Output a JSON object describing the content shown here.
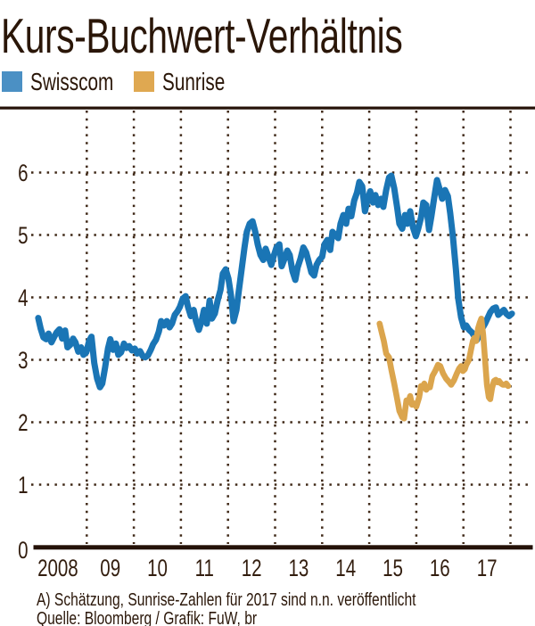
{
  "title": "Kurs-Buchwert-Verhältnis",
  "legend": [
    {
      "label": "Swisscom",
      "color": "#4b90c4"
    },
    {
      "label": "Sunrise",
      "color": "#dfa851"
    }
  ],
  "footnote": "A) Schätzung, Sunrise-Zahlen für 2017 sind n.n. veröffentlicht",
  "source": "Quelle: Bloomberg / Grafik: FuW, br",
  "colors": {
    "background": "#ffffff",
    "ink": "#2a1608",
    "grid": "#3f2817",
    "axis": "#241107",
    "swisscom": "#1a75b5",
    "sunrise": "#dba54d"
  },
  "chart_data": {
    "type": "line",
    "title": "Kurs-Buchwert-Verhältnis",
    "xlabel": "",
    "ylabel": "",
    "xlim": [
      2007.95,
      2018.15
    ],
    "ylim": [
      0,
      7
    ],
    "y_ticks": [
      0,
      1,
      2,
      3,
      4,
      5,
      6
    ],
    "x_tick_labels": [
      "2008",
      "09",
      "10",
      "11",
      "12",
      "13",
      "14",
      "15",
      "16",
      "17"
    ],
    "grid": "dotted",
    "legend_position": "top-left",
    "series": [
      {
        "name": "Swisscom",
        "color": "#1a75b5",
        "x": [
          2007.97,
          2008.02,
          2008.08,
          2008.14,
          2008.19,
          2008.25,
          2008.31,
          2008.36,
          2008.42,
          2008.48,
          2008.54,
          2008.59,
          2008.65,
          2008.71,
          2008.76,
          2008.82,
          2008.88,
          2008.93,
          2008.99,
          2009.05,
          2009.1,
          2009.16,
          2009.22,
          2009.28,
          2009.33,
          2009.39,
          2009.45,
          2009.5,
          2009.56,
          2009.62,
          2009.67,
          2009.73,
          2009.79,
          2009.84,
          2009.9,
          2009.96,
          2010.02,
          2010.07,
          2010.13,
          2010.19,
          2010.24,
          2010.3,
          2010.36,
          2010.41,
          2010.47,
          2010.53,
          2010.58,
          2010.64,
          2010.7,
          2010.76,
          2010.81,
          2010.87,
          2010.93,
          2010.98,
          2011.04,
          2011.1,
          2011.15,
          2011.21,
          2011.27,
          2011.32,
          2011.38,
          2011.44,
          2011.49,
          2011.55,
          2011.61,
          2011.66,
          2011.72,
          2011.78,
          2011.84,
          2011.89,
          2011.95,
          2012.01,
          2012.06,
          2012.12,
          2012.18,
          2012.23,
          2012.29,
          2012.35,
          2012.4,
          2012.46,
          2012.52,
          2012.58,
          2012.63,
          2012.69,
          2012.75,
          2012.8,
          2012.86,
          2012.92,
          2012.97,
          2013.03,
          2013.09,
          2013.14,
          2013.2,
          2013.26,
          2013.31,
          2013.37,
          2013.43,
          2013.48,
          2013.54,
          2013.6,
          2013.66,
          2013.71,
          2013.77,
          2013.83,
          2013.88,
          2013.94,
          2014.0,
          2014.05,
          2014.11,
          2014.17,
          2014.22,
          2014.28,
          2014.34,
          2014.39,
          2014.45,
          2014.51,
          2014.56,
          2014.62,
          2014.68,
          2014.74,
          2014.79,
          2014.85,
          2014.91,
          2014.96,
          2015.02,
          2015.08,
          2015.13,
          2015.19,
          2015.25,
          2015.3,
          2015.36,
          2015.42,
          2015.47,
          2015.53,
          2015.59,
          2015.64,
          2015.7,
          2015.76,
          2015.81,
          2015.87,
          2015.93,
          2015.99,
          2016.04,
          2016.1,
          2016.15,
          2016.21,
          2016.27,
          2016.32,
          2016.38,
          2016.44,
          2016.5,
          2016.55,
          2016.61,
          2016.67,
          2016.72,
          2016.78,
          2016.84,
          2016.89,
          2016.95,
          2017.01,
          2017.06,
          2017.12,
          2017.18,
          2017.23,
          2017.29,
          2017.35,
          2017.4,
          2017.46,
          2017.52,
          2017.57,
          2017.63,
          2017.69,
          2017.74,
          2017.8,
          2017.86,
          2017.91,
          2017.97,
          2018.03
        ],
        "values": [
          3.67,
          3.5,
          3.36,
          3.33,
          3.42,
          3.28,
          3.37,
          3.44,
          3.49,
          3.34,
          3.47,
          3.2,
          3.24,
          3.34,
          3.28,
          3.13,
          3.2,
          3.08,
          3.12,
          3.3,
          3.37,
          2.95,
          2.7,
          2.56,
          2.62,
          2.88,
          3.18,
          3.33,
          3.16,
          3.26,
          3.08,
          3.12,
          3.26,
          3.19,
          3.22,
          3.15,
          3.18,
          3.1,
          3.14,
          3.06,
          3.04,
          3.07,
          3.16,
          3.25,
          3.32,
          3.45,
          3.62,
          3.55,
          3.62,
          3.52,
          3.58,
          3.72,
          3.78,
          3.85,
          3.98,
          4.02,
          3.85,
          3.7,
          3.8,
          3.62,
          3.48,
          3.62,
          3.8,
          3.58,
          3.95,
          3.66,
          3.74,
          3.95,
          4.12,
          4.38,
          4.45,
          4.3,
          4.05,
          3.62,
          3.8,
          4.1,
          4.45,
          4.8,
          5.05,
          5.18,
          5.22,
          5.05,
          4.85,
          4.68,
          4.6,
          4.78,
          4.65,
          4.52,
          4.66,
          4.8,
          4.85,
          4.5,
          4.62,
          4.75,
          4.68,
          4.42,
          4.28,
          4.48,
          4.62,
          4.8,
          4.72,
          4.58,
          4.4,
          4.35,
          4.52,
          4.6,
          4.65,
          4.85,
          4.92,
          4.76,
          5.05,
          5.0,
          4.95,
          5.18,
          5.32,
          5.18,
          5.42,
          5.3,
          5.55,
          5.68,
          5.85,
          5.78,
          5.38,
          5.55,
          5.7,
          5.52,
          5.64,
          5.48,
          5.58,
          5.45,
          5.72,
          5.92,
          5.95,
          5.75,
          5.45,
          5.18,
          5.1,
          5.32,
          5.18,
          5.38,
          5.12,
          4.98,
          5.1,
          5.28,
          5.52,
          5.48,
          5.08,
          5.3,
          5.6,
          5.88,
          5.72,
          5.58,
          5.72,
          5.62,
          5.35,
          4.95,
          4.45,
          3.98,
          3.68,
          3.52,
          3.55,
          3.48,
          3.44,
          3.38,
          3.32,
          3.42,
          3.5,
          3.58,
          3.68,
          3.76,
          3.82,
          3.84,
          3.72,
          3.76,
          3.8,
          3.74,
          3.7,
          3.74
        ]
      },
      {
        "name": "Sunrise",
        "color": "#dba54d",
        "x": [
          2015.22,
          2015.27,
          2015.31,
          2015.36,
          2015.42,
          2015.47,
          2015.53,
          2015.59,
          2015.64,
          2015.7,
          2015.74,
          2015.79,
          2015.83,
          2015.87,
          2015.91,
          2015.96,
          2016.0,
          2016.06,
          2016.1,
          2016.13,
          2016.17,
          2016.21,
          2016.25,
          2016.29,
          2016.34,
          2016.4,
          2016.46,
          2016.51,
          2016.57,
          2016.63,
          2016.69,
          2016.74,
          2016.8,
          2016.86,
          2016.91,
          2016.95,
          2016.99,
          2017.03,
          2017.06,
          2017.12,
          2017.16,
          2017.2,
          2017.23,
          2017.27,
          2017.31,
          2017.35,
          2017.38,
          2017.42,
          2017.46,
          2017.5,
          2017.54,
          2017.57,
          2017.61,
          2017.65,
          2017.69,
          2017.72,
          2017.76,
          2017.8,
          2017.84,
          2017.88,
          2017.91,
          2017.95
        ],
        "values": [
          3.58,
          3.42,
          3.3,
          3.1,
          3.04,
          2.84,
          2.62,
          2.38,
          2.18,
          2.08,
          2.06,
          2.35,
          2.32,
          2.42,
          2.28,
          2.3,
          2.25,
          2.4,
          2.58,
          2.55,
          2.62,
          2.52,
          2.56,
          2.56,
          2.74,
          2.82,
          2.92,
          2.9,
          2.78,
          2.7,
          2.65,
          2.6,
          2.67,
          2.78,
          2.86,
          2.9,
          2.82,
          2.85,
          2.92,
          3.0,
          3.15,
          3.3,
          3.35,
          3.3,
          3.5,
          3.6,
          3.66,
          3.4,
          3.0,
          2.6,
          2.4,
          2.37,
          2.55,
          2.66,
          2.68,
          2.64,
          2.66,
          2.62,
          2.6,
          2.6,
          2.62,
          2.58
        ]
      }
    ]
  }
}
